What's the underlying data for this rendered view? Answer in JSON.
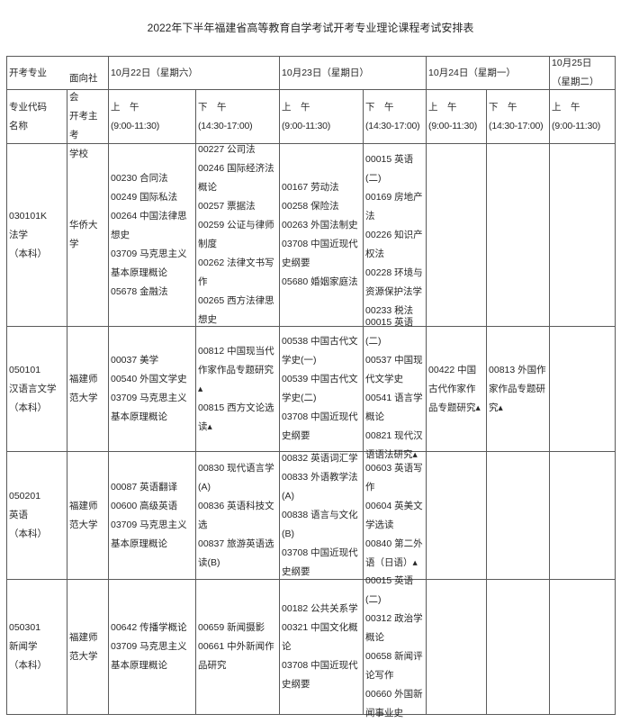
{
  "title": "2022年下半年福建省高等教育自学考试开考专业理论课程考试安排表",
  "header": {
    "major": "开考专业",
    "code": "专业代码\n名称",
    "school": "面向社会\n开考主考\n学校",
    "dates": [
      {
        "label": "10月22日（星期六）"
      },
      {
        "label": "10月23日（星期日）"
      },
      {
        "label": "10月24日（星期一）"
      },
      {
        "label": "10月25日\n（星期二）"
      }
    ],
    "sessions": [
      {
        "label": "上　午",
        "time": "(9:00-11:30)"
      },
      {
        "label": "下　午",
        "time": "(14:30-17:00)"
      },
      {
        "label": "上　午",
        "time": "(9:00-11:30)"
      },
      {
        "label": "下　午",
        "time": "(14:30-17:00)"
      },
      {
        "label": "上　午",
        "time": "(9:00-11:30)"
      },
      {
        "label": "下　午",
        "time": "(14:30-17:00)"
      },
      {
        "label": "上　午",
        "time": "(9:00-11:30)"
      }
    ]
  },
  "rows": [
    {
      "major": "030101K\n法学\n（本科）",
      "school": "华侨大学",
      "cells": [
        [
          "00230 合同法",
          "00249 国际私法",
          "00264 中国法律思想史",
          "03709 马克思主义基本原理概论",
          "05678 金融法"
        ],
        [
          "00227 公司法",
          "00246 国际经济法概论",
          "00257 票据法",
          "00259 公证与律师制度",
          "00262 法律文书写作",
          "00265 西方法律思想史"
        ],
        [
          "00167 劳动法",
          "00258 保险法",
          "00263 外国法制史",
          "03708 中国近现代史纲要",
          "05680 婚姻家庭法"
        ],
        [
          "00015 英语(二)",
          "00169 房地产法",
          "00226 知识产权法",
          "00228 环境与资源保护法学",
          "00233 税法"
        ],
        [],
        [],
        []
      ]
    },
    {
      "major": "050101\n汉语言文学\n（本科）",
      "school": "福建师范大学",
      "cells": [
        [
          "00037 美学",
          "00540 外国文学史",
          "03709 马克思主义基本原理概论"
        ],
        [
          "00812 中国现当代作家作品专题研究▴",
          "00815 西方文论选读▴"
        ],
        [
          "00538 中国古代文学史(一)",
          "00539 中国古代文学史(二)",
          "03708 中国近现代史纲要"
        ],
        [
          "00015 英语(二)",
          "00537 中国现代文学史",
          "00541 语言学概论",
          "00821 现代汉语语法研究▴"
        ],
        [
          "00422 中国古代作家作品专题研究▴"
        ],
        [
          "00813 外国作家作品专题研究▴"
        ],
        []
      ]
    },
    {
      "major": "050201\n英语\n（本科）",
      "school": "福建师范大学",
      "cells": [
        [
          "00087 英语翻译",
          "00600 高级英语",
          "03709 马克思主义基本原理概论"
        ],
        [
          "00830 现代语言学(A)",
          "00836 英语科技文选",
          "00837 旅游英语选读(B)"
        ],
        [
          "00832 英语词汇学",
          "00833 外语教学法(A)",
          "00838 语言与文化(B)",
          "03708 中国近现代史纲要"
        ],
        [
          "00603 英语写作",
          "00604 英美文学选读",
          "00840 第二外语（日语）▴"
        ],
        [],
        [],
        []
      ]
    },
    {
      "major": "050301\n新闻学\n（本科）",
      "school": "福建师范大学",
      "cells": [
        [
          "00642 传播学概论",
          "03709 马克思主义基本原理概论"
        ],
        [
          "00659 新闻摄影",
          "00661 中外新闻作品研究"
        ],
        [
          "00182 公共关系学",
          "00321 中国文化概论",
          "03708 中国近现代史纲要"
        ],
        [
          "00015 英语(二)",
          "00312 政治学概论",
          "00658 新闻评论写作",
          "00660 外国新闻事业史"
        ],
        [],
        [],
        []
      ]
    }
  ]
}
